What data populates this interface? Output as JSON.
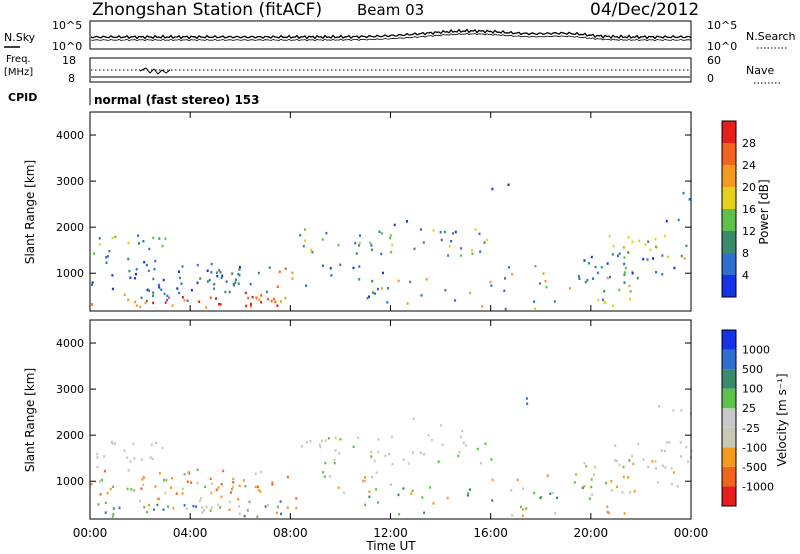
{
  "header": {
    "title": "Zhongshan Station (fitACF)",
    "beam": "Beam 03",
    "date": "04/Dec/2012"
  },
  "noise_panel": {
    "left_label": "N.Sky",
    "left_ticks": [
      "10^5",
      "10^0"
    ],
    "right_ticks": [
      "10^5",
      "10^0"
    ],
    "right_label": "N.Search"
  },
  "freq_panel": {
    "left_label_1": "Freq.",
    "left_label_2": "[MHz]",
    "left_ticks": [
      "18",
      "8"
    ],
    "right_ticks": [
      "60",
      "0"
    ],
    "right_label": "Nave"
  },
  "cpid": {
    "label": "CPID",
    "text": "normal (fast stereo) 153"
  },
  "colors": {
    "power": [
      "#1432e6",
      "#2f6fd2",
      "#3c8a6e",
      "#5cc24a",
      "#e6d21e",
      "#f59a1e",
      "#f0641e",
      "#e61e1e"
    ],
    "velocity": [
      "#e61e1e",
      "#f0641e",
      "#f59a1e",
      "#c8c8b4",
      "#c8c8c8",
      "#5cc24a",
      "#3c8a6e",
      "#2f6fd2",
      "#1432e6"
    ]
  },
  "chart_data": [
    {
      "type": "heatmap",
      "name": "power",
      "ylabel": "Slant Range [km]",
      "yticks": [
        "4000",
        "3000",
        "2000",
        "1000"
      ],
      "ytick_values": [
        4000,
        3000,
        2000,
        1000
      ],
      "ylim": [
        180,
        4500
      ],
      "xlim": [
        0,
        24
      ],
      "colorbar_label": "Power [dB]",
      "colorbar_ticks": [
        "28",
        "24",
        "20",
        "16",
        "12",
        "8",
        "4"
      ],
      "colorbar_range": [
        0,
        32
      ]
    },
    {
      "type": "heatmap",
      "name": "velocity",
      "ylabel": "Slant Range [km]",
      "yticks": [
        "4000",
        "3000",
        "2000",
        "1000"
      ],
      "ytick_values": [
        4000,
        3000,
        2000,
        1000
      ],
      "ylim": [
        180,
        4500
      ],
      "xlim": [
        0,
        24
      ],
      "colorbar_label": "Velocity [m s⁻¹]",
      "colorbar_ticks": [
        "1000",
        "500",
        "100",
        "25",
        "-25",
        "-100",
        "-500",
        "-1000"
      ]
    }
  ],
  "x_axis": {
    "ticks": [
      "00:00",
      "04:00",
      "08:00",
      "12:00",
      "16:00",
      "20:00",
      "00:00"
    ],
    "tick_values": [
      0,
      4,
      8,
      12,
      16,
      20,
      24
    ],
    "label": "Time UT"
  }
}
